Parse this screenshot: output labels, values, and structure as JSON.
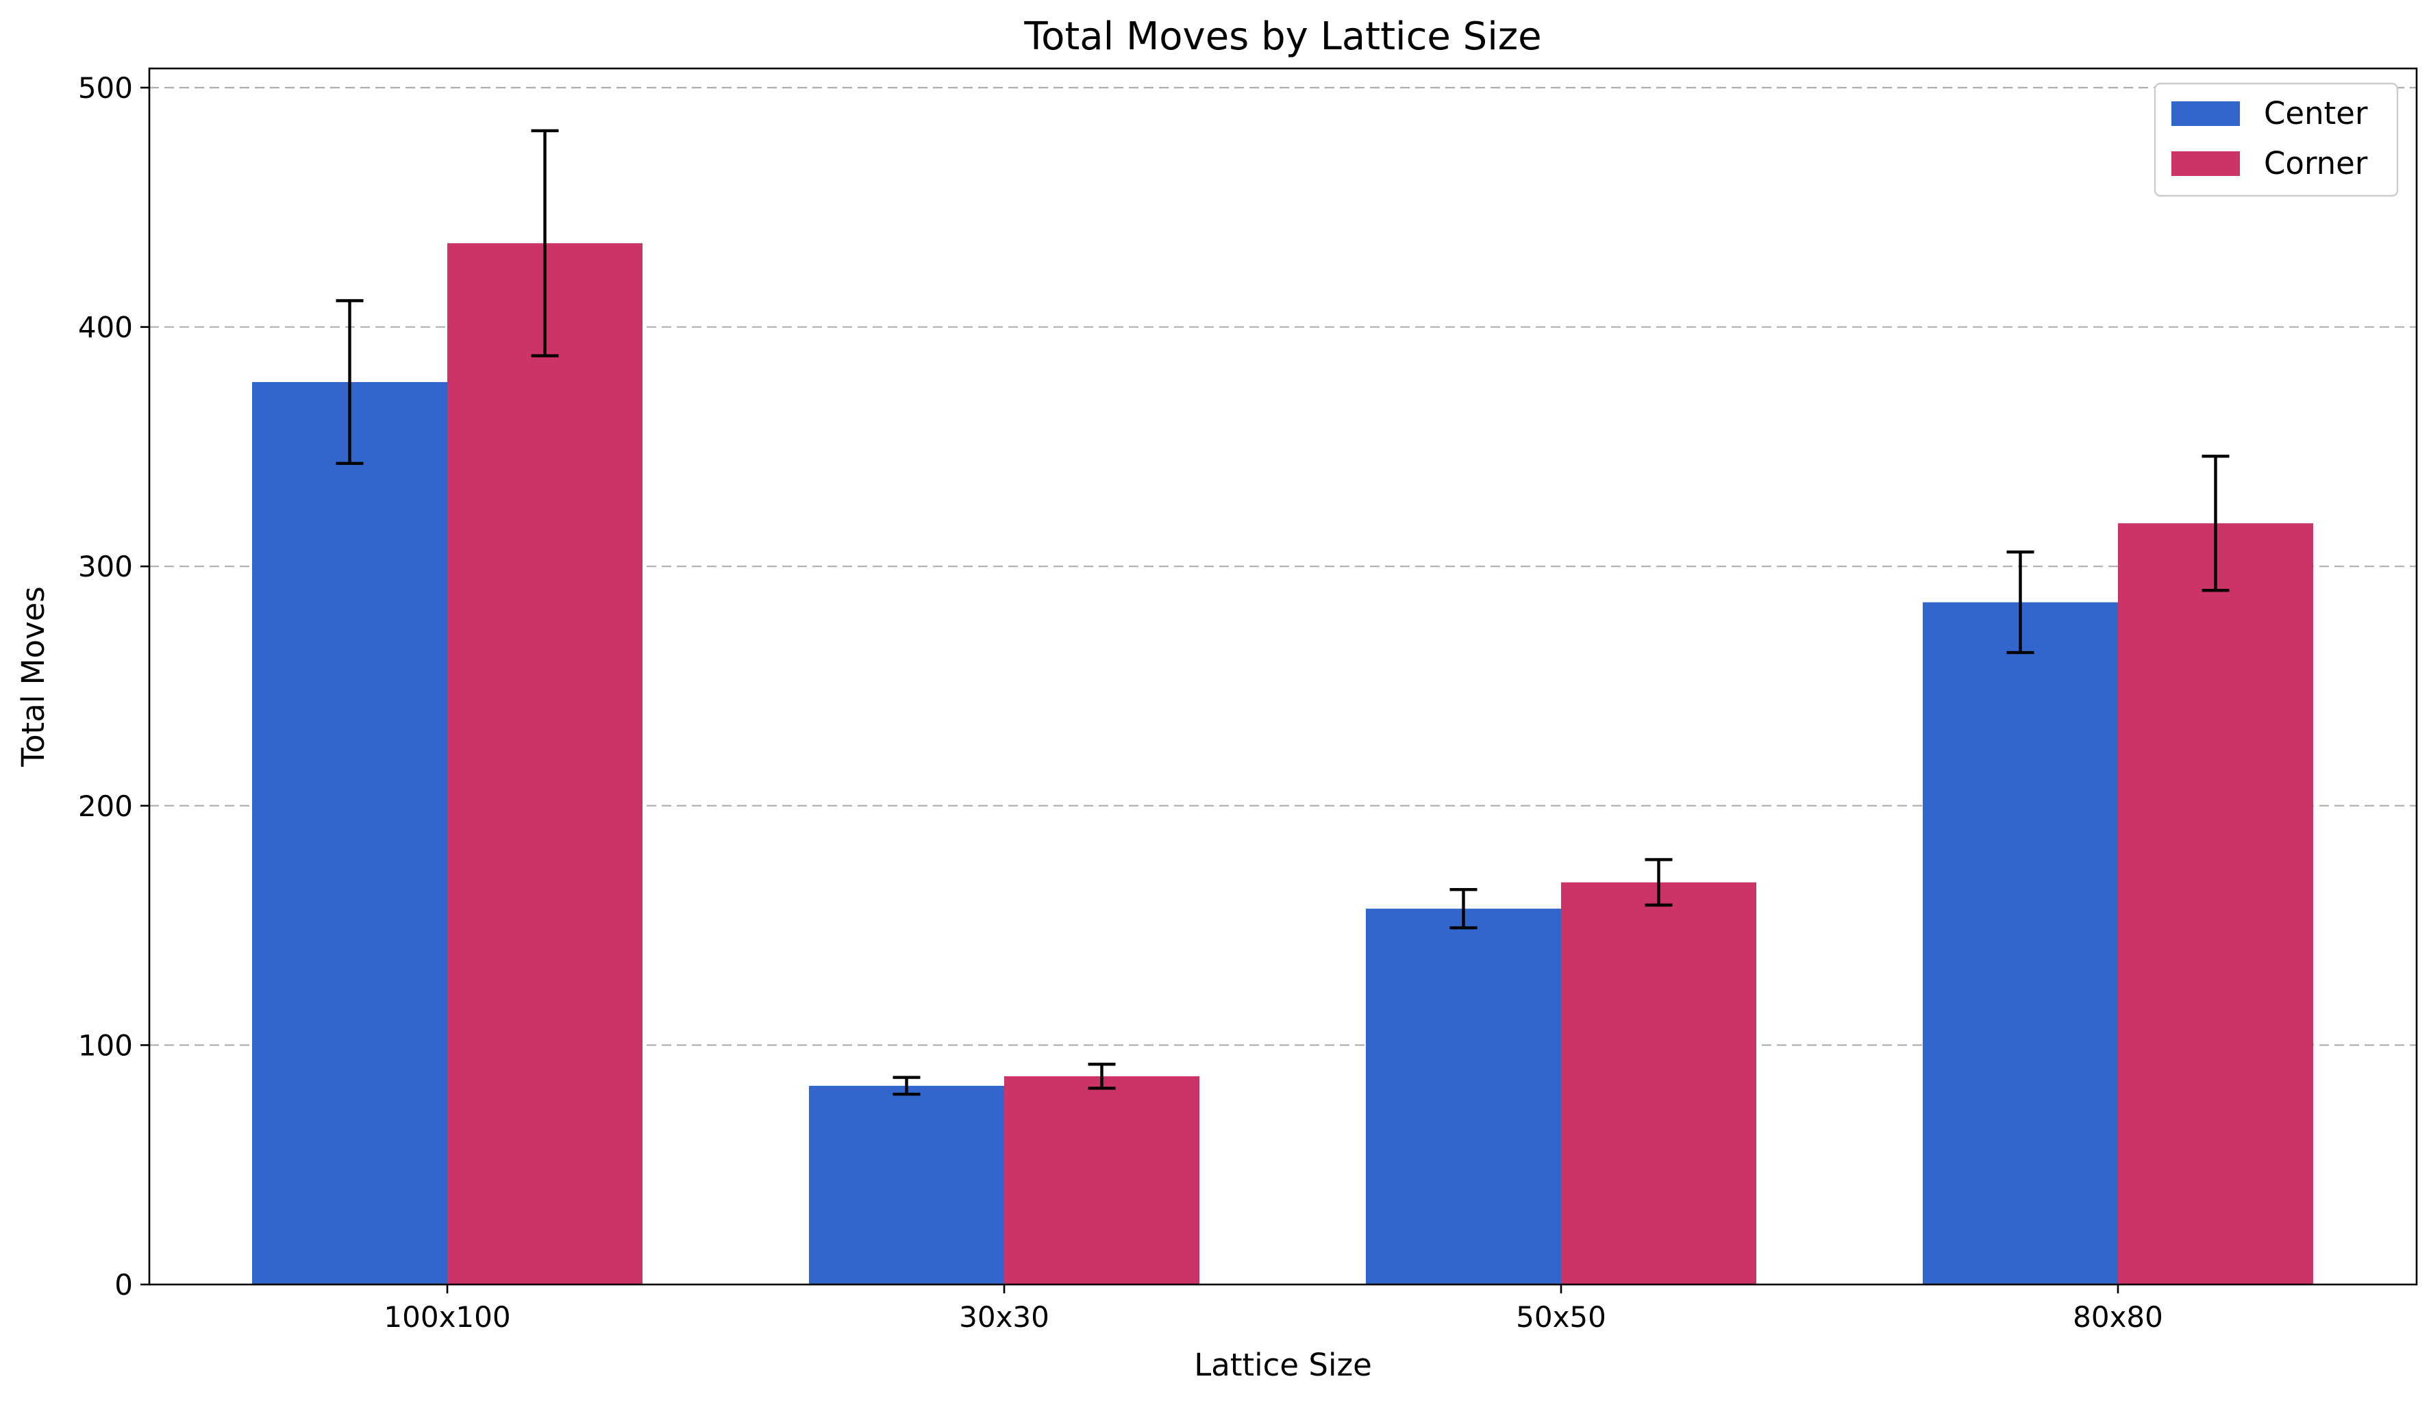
{
  "chart_data": {
    "type": "bar",
    "title": "Total Moves by Lattice Size",
    "xlabel": "Lattice Size",
    "ylabel": "Total Moves",
    "categories": [
      "100x100",
      "30x30",
      "50x50",
      "80x80"
    ],
    "ylim": [
      0,
      508
    ],
    "yticks": [
      0,
      100,
      200,
      300,
      400,
      500
    ],
    "grid": "y-dashed",
    "legend_position": "top-right",
    "series": [
      {
        "name": "Center",
        "color": "#3366cc",
        "values": [
          377,
          83,
          157,
          285
        ],
        "errors": [
          34,
          3.5,
          8,
          21
        ]
      },
      {
        "name": "Corner",
        "color": "#cc3366",
        "values": [
          435,
          87,
          168,
          318
        ],
        "errors": [
          47,
          5,
          9.5,
          28
        ]
      }
    ]
  }
}
